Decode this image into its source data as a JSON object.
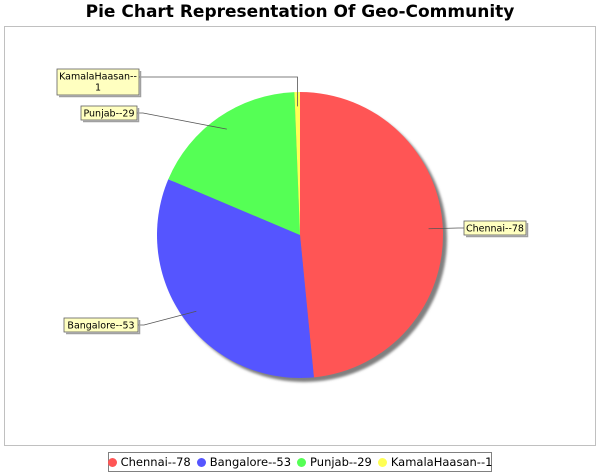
{
  "chart_data": {
    "type": "pie",
    "title": "Pie Chart Representation Of Geo-Community",
    "slices": [
      {
        "label": "Chennai--78",
        "value": 78,
        "color": "#ff5555"
      },
      {
        "label": "Bangalore--53",
        "value": 53,
        "color": "#5555ff"
      },
      {
        "label": "Punjab--29",
        "value": 29,
        "color": "#55ff55"
      },
      {
        "label": "KamalaHaasan--1",
        "value": 1,
        "color": "#ffff55"
      }
    ],
    "callout_labels": [
      [
        "Chennai--78"
      ],
      [
        "Bangalore--53"
      ],
      [
        "Punjab--29"
      ],
      [
        "KamalaHaasan--",
        "1"
      ]
    ],
    "legend": {
      "placement": "bottom",
      "items": [
        "Chennai--78",
        "Bangalore--53",
        "Punjab--29",
        "KamalaHaasan--1"
      ]
    },
    "start_angle_deg": 90,
    "direction": "clockwise"
  }
}
